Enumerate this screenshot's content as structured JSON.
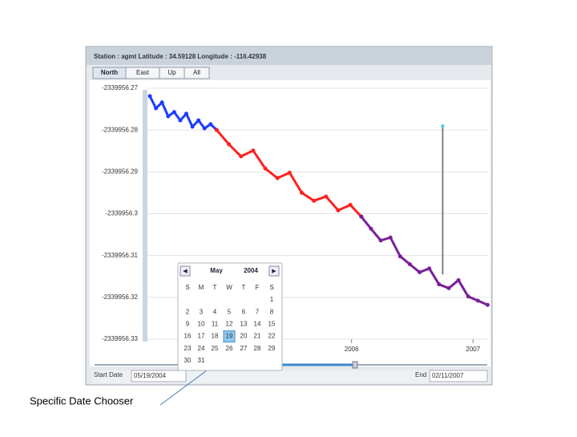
{
  "header": {
    "title": "Station : agmt Latitude : 34.59128 Longitude : -116.42938"
  },
  "tabs": [
    "North",
    "East",
    "Up",
    "All"
  ],
  "chart_data": {
    "type": "line",
    "xlim": [
      2004.32,
      2007.13
    ],
    "xticks": [
      2006,
      2007
    ],
    "ylim": [
      -2339956.33,
      -2339956.27
    ],
    "yticks": [
      -2339956.27,
      -2339956.28,
      -2339956.29,
      -2339956.3,
      -2339956.31,
      -2339956.32,
      -2339956.33
    ],
    "grid": true,
    "series": [
      {
        "color": "#1f3bff",
        "x": [
          2004.34,
          2004.39,
          2004.44,
          2004.49,
          2004.54,
          2004.59,
          2004.64,
          2004.69,
          2004.74,
          2004.79,
          2004.84,
          2004.89
        ],
        "values": [
          -2339956.2719,
          -2339956.2748,
          -2339956.2734,
          -2339956.2767,
          -2339956.2757,
          -2339956.2777,
          -2339956.2761,
          -2339956.2792,
          -2339956.2777,
          -2339956.2796,
          -2339956.2786,
          -2339956.28
        ]
      },
      {
        "color": "#ff2020",
        "x": [
          2004.89,
          2004.99,
          2005.09,
          2005.19,
          2005.29,
          2005.39,
          2005.49,
          2005.59,
          2005.69,
          2005.79,
          2005.89,
          2005.99,
          2006.08
        ],
        "values": [
          -2339956.28,
          -2339956.2834,
          -2339956.2863,
          -2339956.2849,
          -2339956.2892,
          -2339956.2915,
          -2339956.2902,
          -2339956.295,
          -2339956.2969,
          -2339956.2959,
          -2339956.2992,
          -2339956.2979,
          -2339956.3007
        ]
      },
      {
        "color": "#7a1f9a",
        "x": [
          2006.08,
          2006.16,
          2006.24,
          2006.32,
          2006.4,
          2006.48,
          2006.56,
          2006.64,
          2006.72,
          2006.8,
          2006.88,
          2006.96,
          2007.04,
          2007.12
        ],
        "values": [
          -2339956.3007,
          -2339956.3036,
          -2339956.3064,
          -2339956.3057,
          -2339956.3102,
          -2339956.3121,
          -2339956.314,
          -2339956.3131,
          -2339956.3169,
          -2339956.3178,
          -2339956.3159,
          -2339956.3198,
          -2339956.3208,
          -2339956.3218
        ]
      },
      {
        "color": "#808080",
        "x": [
          2006.75,
          2006.75
        ],
        "values": [
          -2339956.3145,
          -2339956.279
        ]
      }
    ]
  },
  "calendar": {
    "month": "May",
    "year": "2004",
    "weekdays": [
      "S",
      "M",
      "T",
      "W",
      "T",
      "F",
      "S"
    ],
    "weeks": [
      [
        null,
        null,
        null,
        null,
        null,
        null,
        "1"
      ],
      [
        "2",
        "3",
        "4",
        "5",
        "6",
        "7",
        "8"
      ],
      [
        "9",
        "10",
        "11",
        "12",
        "13",
        "14",
        "15"
      ],
      [
        "16",
        "17",
        "18",
        "19",
        "20",
        "21",
        "22"
      ],
      [
        "23",
        "24",
        "25",
        "26",
        "27",
        "28",
        "29"
      ],
      [
        "30",
        "31",
        null,
        null,
        null,
        null,
        null
      ]
    ],
    "selected": "19"
  },
  "footer": {
    "start_label": "Start Date",
    "start_value": "05/19/2004",
    "end_label": "End",
    "end_value": "02/11/2007"
  },
  "callout": "Specific Date Chooser"
}
